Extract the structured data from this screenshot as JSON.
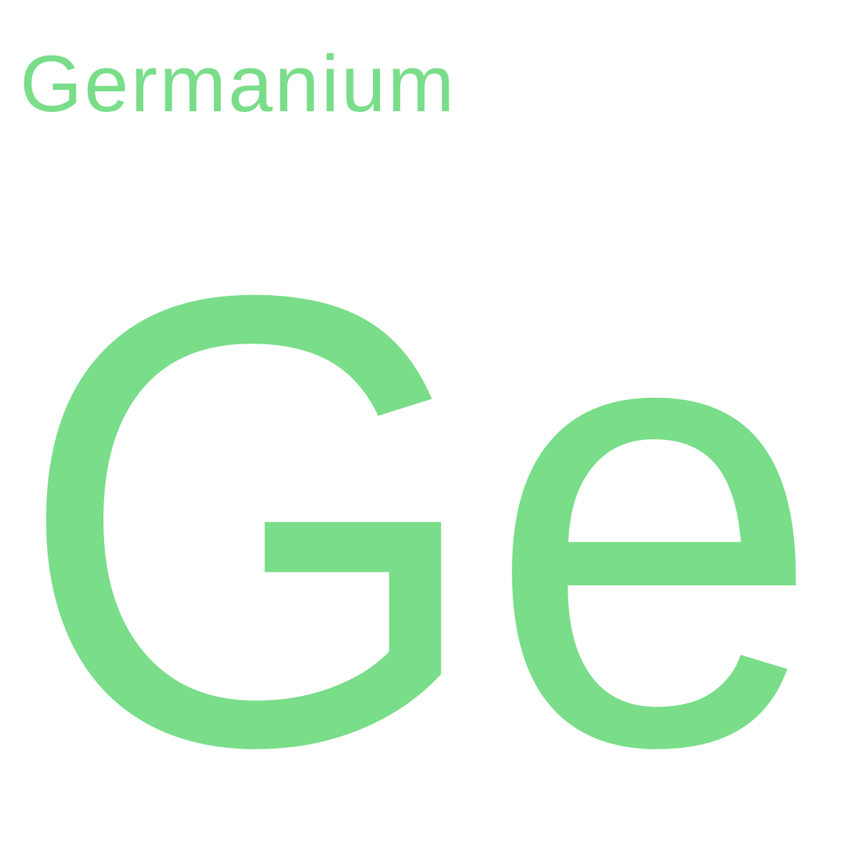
{
  "element": {
    "name": "Germanium",
    "symbol": "Ge"
  },
  "colors": {
    "accent": "#79DD89",
    "background": "#FFFFFF"
  }
}
